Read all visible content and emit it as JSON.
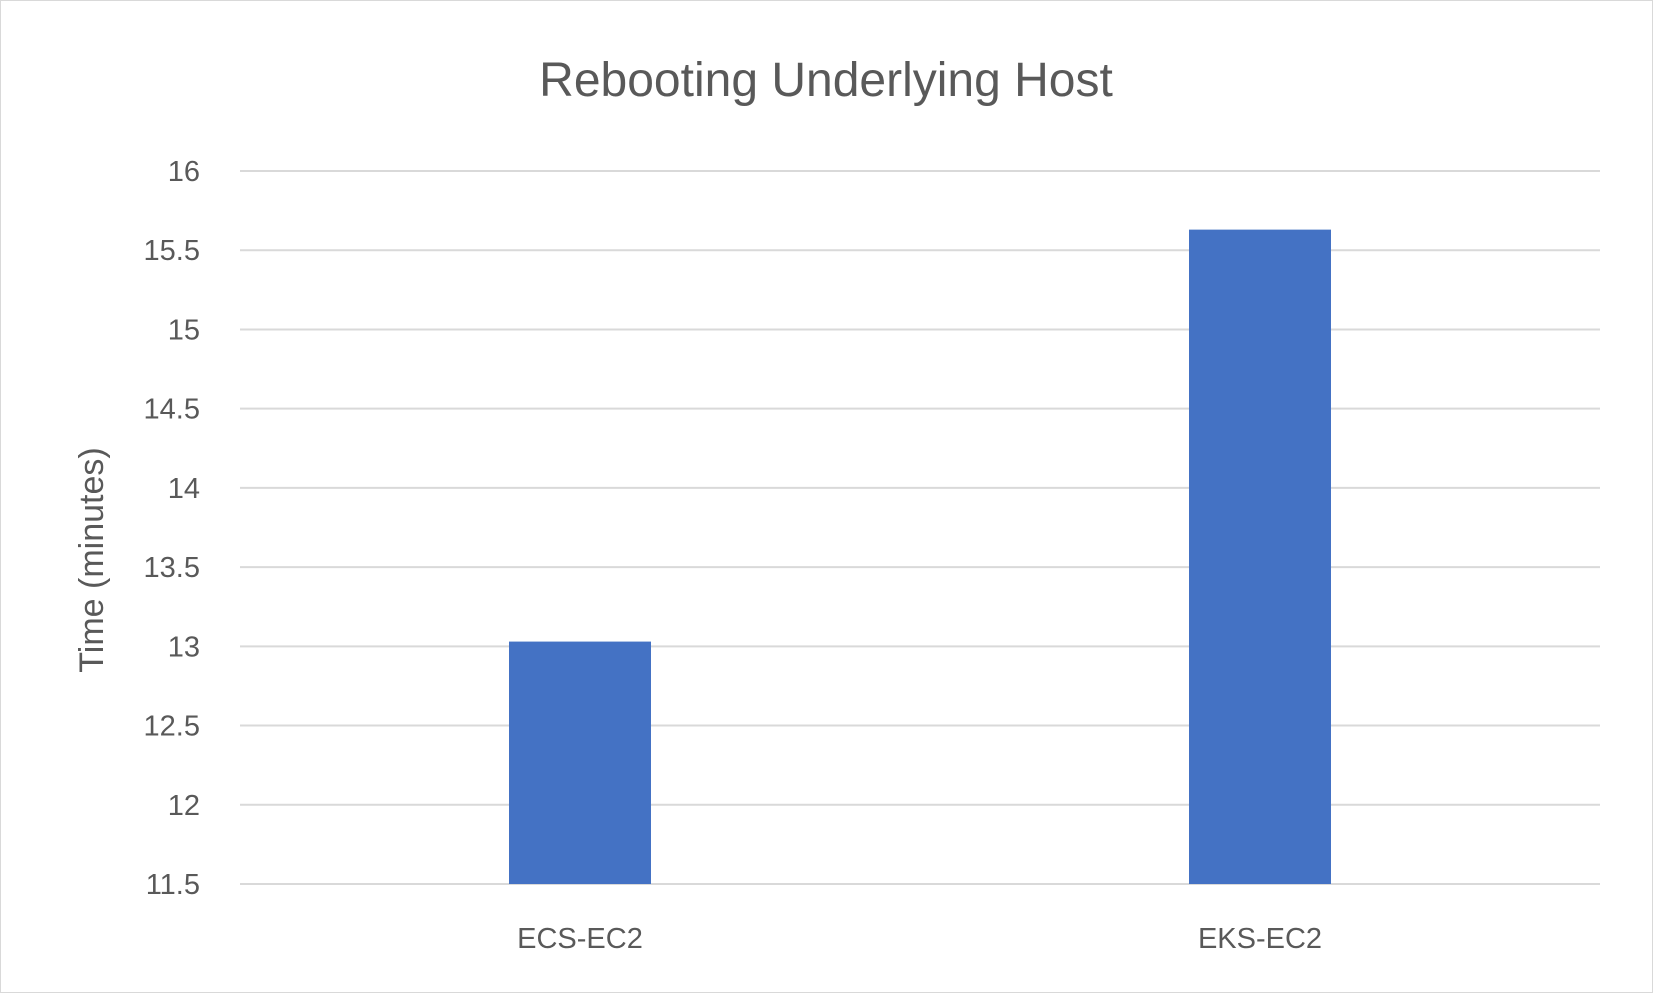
{
  "chart_data": {
    "type": "bar",
    "title": "Rebooting Underlying Host",
    "xlabel": "",
    "ylabel": "Time (minutes)",
    "categories": [
      "ECS-EC2",
      "EKS-EC2"
    ],
    "values": [
      13.03,
      15.63
    ],
    "ylim": [
      11.5,
      16
    ],
    "yticks": [
      11.5,
      12,
      12.5,
      13,
      13.5,
      14,
      14.5,
      15,
      15.5,
      16
    ],
    "ytick_labels": [
      "11.5",
      "12",
      "12.5",
      "13",
      "13.5",
      "14",
      "14.5",
      "15",
      "15.5",
      "16"
    ],
    "grid": true,
    "legend": "none",
    "bar_color": "#4472C4"
  }
}
